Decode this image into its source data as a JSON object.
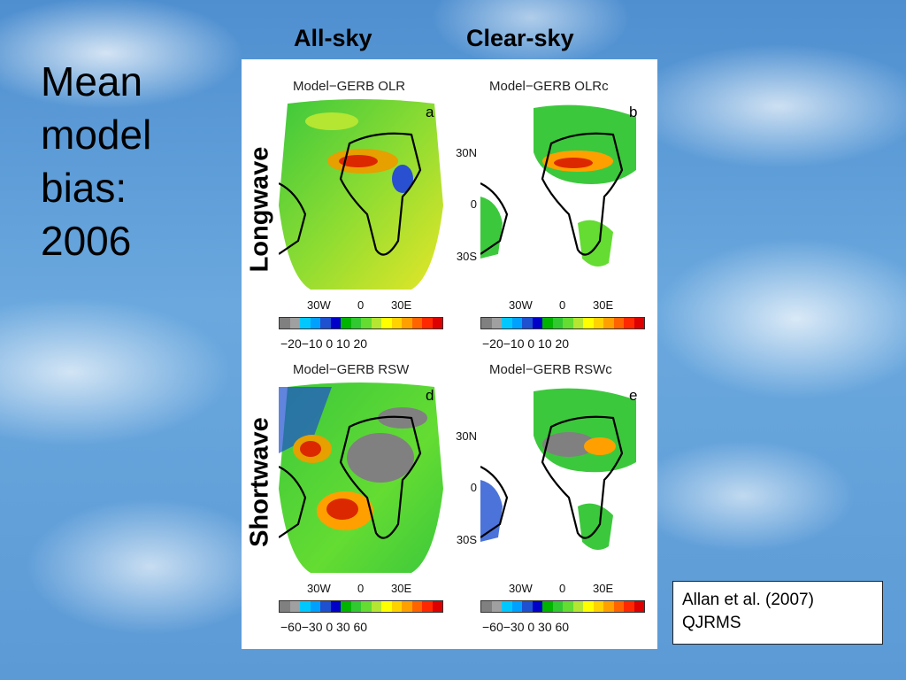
{
  "slide": {
    "title_lines": [
      "Mean",
      "model",
      "bias:",
      "2006"
    ],
    "column_headers": [
      "All-sky",
      "Clear-sky"
    ],
    "row_labels": [
      "Longwave",
      "Shortwave"
    ],
    "citation_lines": [
      "Allan et al. (2007)",
      "QJRMS"
    ]
  },
  "panels": [
    {
      "title": "Model−GERB  OLR",
      "letter": "a"
    },
    {
      "title": "Model−GERB  OLRc",
      "letter": "b"
    },
    {
      "title": "Model−GERB  RSW",
      "letter": "d"
    },
    {
      "title": "Model−GERB  RSWc",
      "letter": "e"
    }
  ],
  "axes": {
    "lon_ticks": [
      "30W",
      "0",
      "30E"
    ],
    "lat_ticks": [
      "30N",
      "0",
      "30S"
    ]
  },
  "colorbars": {
    "longwave_ticks": "−20−10  0   10   20",
    "shortwave_ticks": "−60−30  0   30   60",
    "colors": [
      "#808080",
      "#a0a0a0",
      "#00c8ff",
      "#00a0ff",
      "#1e50d0",
      "#0000c8",
      "#00b400",
      "#32c832",
      "#64dc32",
      "#b4e632",
      "#ffff00",
      "#ffd200",
      "#ffa000",
      "#ff6400",
      "#ff2800",
      "#dc0000"
    ]
  }
}
